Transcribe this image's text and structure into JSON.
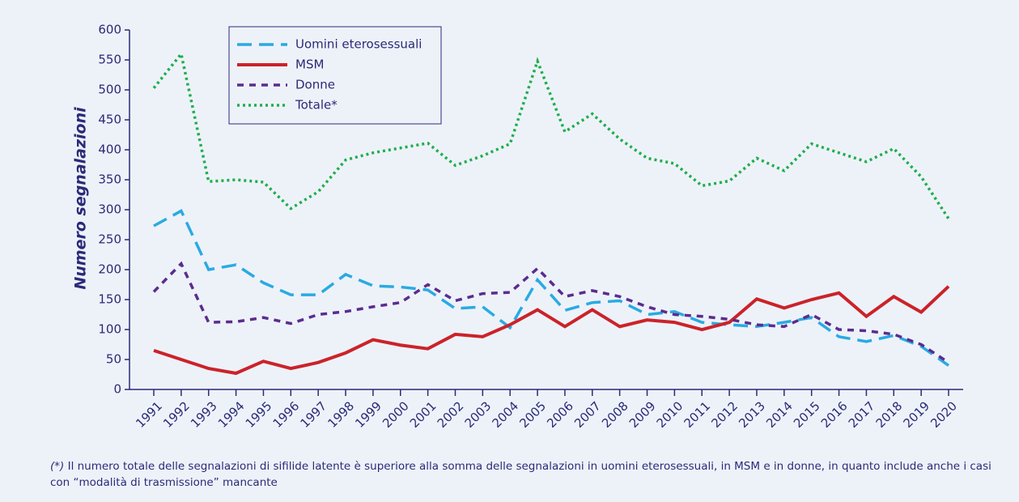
{
  "chart_data": {
    "type": "line",
    "y_label": "Numero segnalazioni",
    "categories": [
      "1991",
      "1992",
      "1993",
      "1994",
      "1995",
      "1996",
      "1997",
      "1998",
      "1999",
      "2000",
      "2001",
      "2002",
      "2003",
      "2004",
      "2005",
      "2006",
      "2007",
      "2008",
      "2009",
      "2010",
      "2011",
      "2012",
      "2013",
      "2014",
      "2015",
      "2016",
      "2017",
      "2018",
      "2019",
      "2020"
    ],
    "series": [
      {
        "name": "Uomini eterosessuali",
        "color": "#2aaae2",
        "line_style": "dashed",
        "values": [
          273,
          298,
          200,
          208,
          178,
          158,
          158,
          192,
          173,
          171,
          166,
          135,
          138,
          103,
          183,
          132,
          145,
          148,
          125,
          130,
          112,
          108,
          105,
          112,
          120,
          88,
          80,
          90,
          72,
          40
        ]
      },
      {
        "name": "MSM",
        "color": "#cc2229",
        "line_style": "solid",
        "values": [
          65,
          50,
          35,
          27,
          47,
          35,
          45,
          61,
          83,
          74,
          68,
          92,
          88,
          108,
          133,
          105,
          133,
          105,
          116,
          112,
          100,
          112,
          151,
          136,
          150,
          161,
          122,
          155,
          129,
          172
        ]
      },
      {
        "name": "Donne",
        "color": "#5b2c8e",
        "line_style": "dashed-short",
        "values": [
          163,
          210,
          112,
          113,
          120,
          110,
          125,
          130,
          138,
          145,
          175,
          148,
          160,
          162,
          202,
          155,
          165,
          155,
          138,
          125,
          122,
          117,
          108,
          105,
          125,
          100,
          98,
          92,
          75,
          45
        ]
      },
      {
        "name": "Totale*",
        "color": "#1fae4b",
        "line_style": "dotted",
        "values": [
          503,
          560,
          347,
          350,
          346,
          302,
          330,
          383,
          395,
          403,
          411,
          374,
          390,
          410,
          548,
          430,
          460,
          418,
          386,
          377,
          340,
          348,
          386,
          365,
          410,
          395,
          380,
          402,
          355,
          285
        ]
      }
    ],
    "ylim": [
      0,
      600
    ],
    "yticks": [
      0,
      50,
      100,
      150,
      200,
      250,
      300,
      350,
      400,
      450,
      500,
      550,
      600
    ],
    "legend": "top-left",
    "footnote": {
      "marker": "(*)",
      "text": " Il numero totale delle segnalazioni di sifilide latente è superiore alla somma delle segnalazioni in uomini eterosessuali, in MSM e in donne, in quanto include anche i casi con “modalità di trasmissione” mancante"
    }
  }
}
